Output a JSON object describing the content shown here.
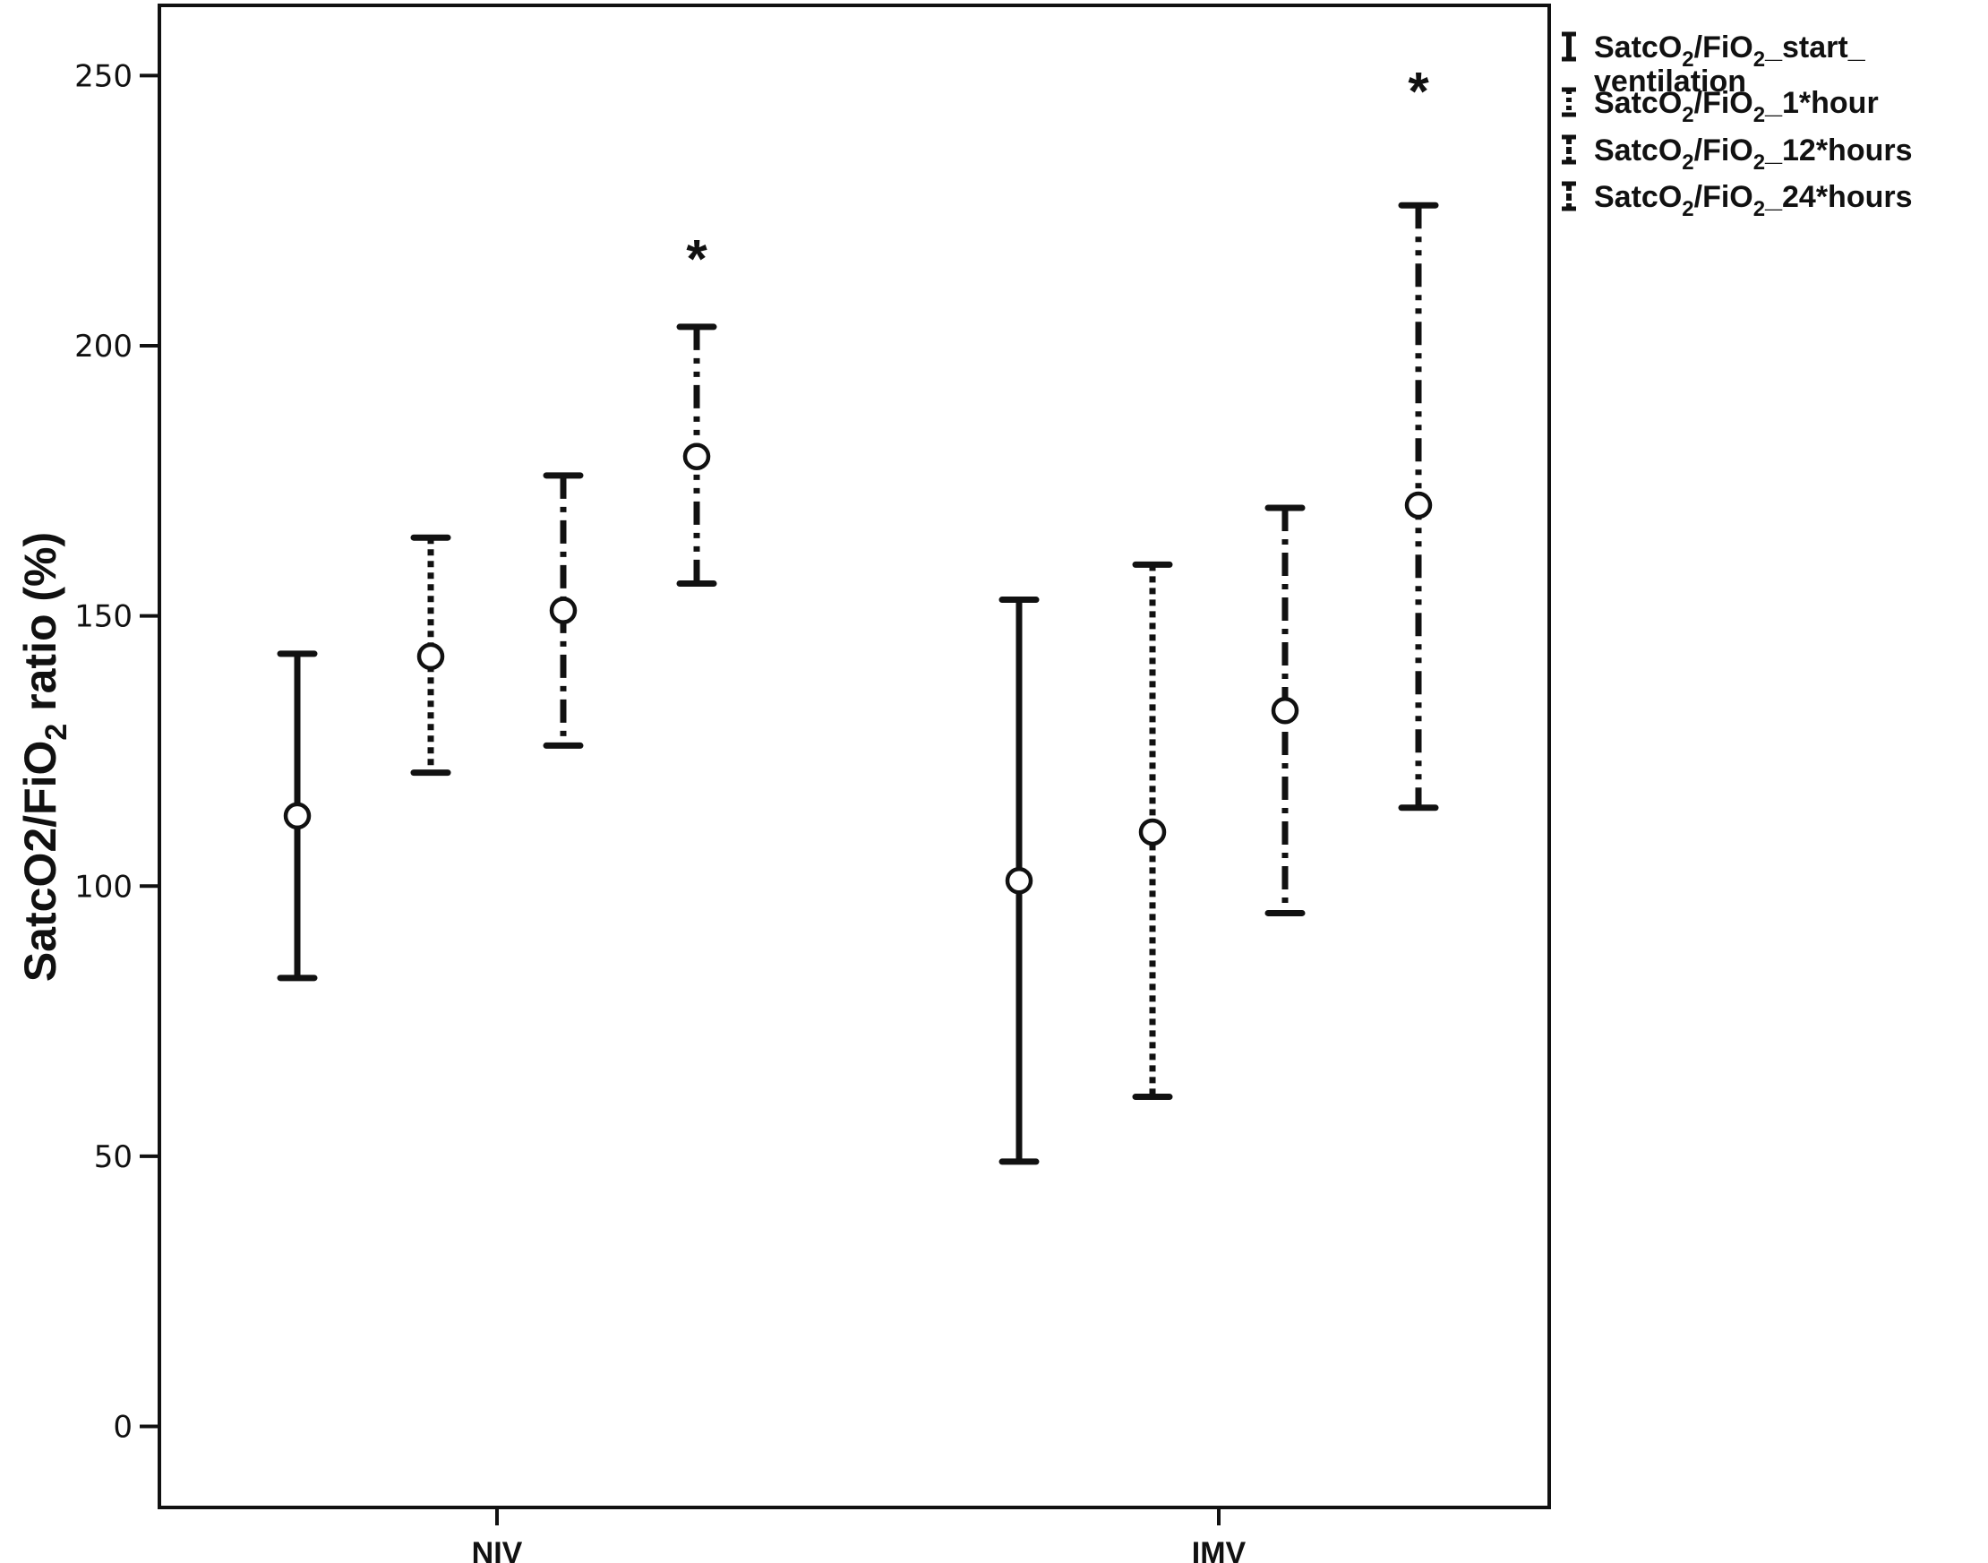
{
  "chart_data": {
    "type": "errorbar",
    "ylabel": {
      "main": "SatcO2/FiO",
      "sub": "2",
      "tail": " ratio (%)"
    },
    "ylim": [
      -15,
      263
    ],
    "yticks": [
      0,
      50,
      100,
      150,
      200,
      250
    ],
    "ytick_labels": [
      "0",
      "50",
      "100",
      "150",
      "200",
      "250"
    ],
    "categories": [
      "NIV",
      "IMV"
    ],
    "legend_position": "outside-right-top",
    "series": [
      {
        "label_parts": [
          "SatcO",
          "2",
          "/FiO",
          "2",
          "_start_"
        ],
        "label_line2": "ventilation",
        "dash": "solid",
        "mean": [
          113,
          101
        ],
        "lower": [
          83,
          49
        ],
        "upper": [
          143,
          153
        ]
      },
      {
        "label_parts": [
          "SatcO",
          "2",
          "/FiO",
          "2",
          "_1*hour"
        ],
        "dash": "dotted",
        "mean": [
          142.5,
          110
        ],
        "lower": [
          121,
          61
        ],
        "upper": [
          164.5,
          159.5
        ]
      },
      {
        "label_parts": [
          "SatcO",
          "2",
          "/FiO",
          "2",
          "_12*hours"
        ],
        "dash": "dashdot",
        "mean": [
          151,
          132.5
        ],
        "lower": [
          126,
          95
        ],
        "upper": [
          176,
          170
        ]
      },
      {
        "label_parts": [
          "SatcO",
          "2",
          "/FiO",
          "2",
          "_24*hours"
        ],
        "dash": "dashdotdot",
        "mean": [
          179.5,
          170.5
        ],
        "lower": [
          156,
          114.5
        ],
        "upper": [
          203.5,
          226
        ]
      }
    ],
    "annotations": [
      {
        "text": "*",
        "category": "NIV",
        "series": 3,
        "y": 219
      },
      {
        "text": "*",
        "category": "IMV",
        "series": 3,
        "y": 250
      }
    ]
  }
}
